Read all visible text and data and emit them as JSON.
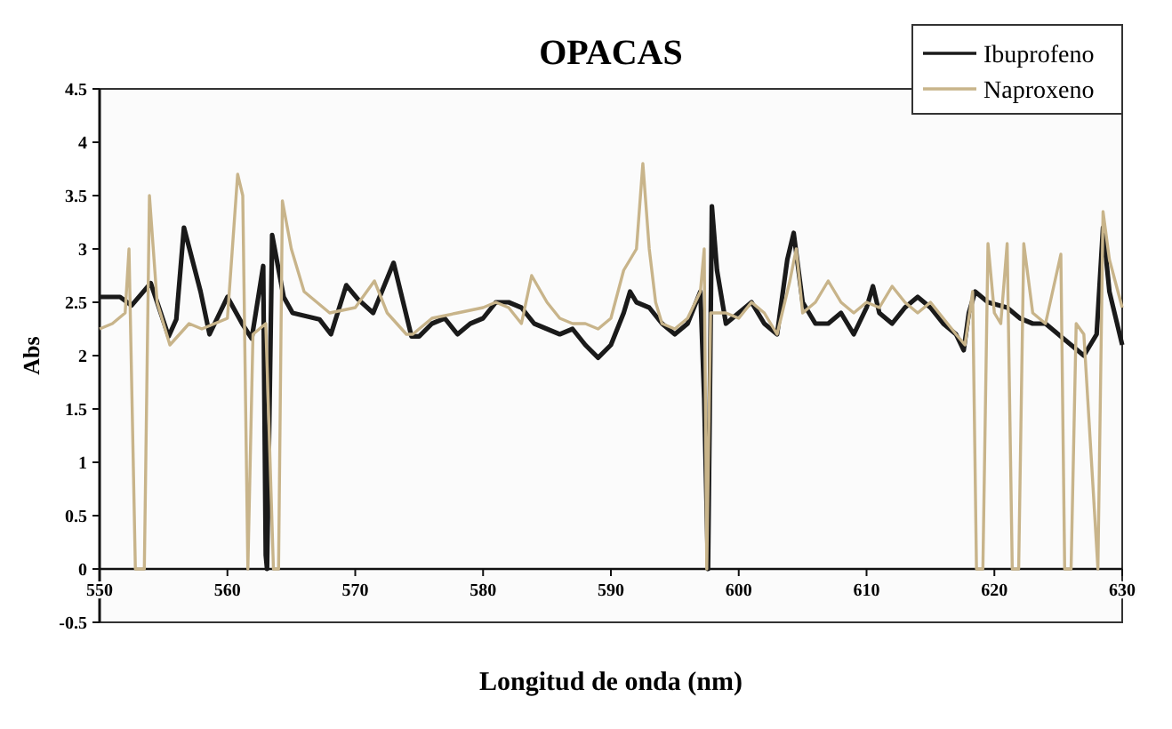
{
  "chart_data": {
    "type": "line",
    "title": "OPACAS",
    "xlabel": "Longitud de onda (nm)",
    "ylabel": "Abs",
    "xlim": [
      550,
      630
    ],
    "xticks": [
      550,
      560,
      570,
      580,
      590,
      600,
      610,
      620,
      630
    ],
    "ylim": [
      -0.5,
      4.5
    ],
    "yticks": [
      -0.5,
      0,
      0.5,
      1,
      1.5,
      2,
      2.5,
      3,
      3.5,
      4,
      4.5
    ],
    "legend": "top right",
    "grid": false,
    "marker": "none",
    "line_style": "solid",
    "series": [
      {
        "name": "Ibuprofeno",
        "color": "#1a1a1a",
        "x": [
          550,
          551.6,
          552.5,
          554,
          555.4,
          556,
          556.6,
          557.9,
          558.6,
          560,
          561.2,
          561.9,
          562.8,
          563,
          563.1,
          563.5,
          564.4,
          565.1,
          567.2,
          568.1,
          569.3,
          570.2,
          571.4,
          573,
          574.4,
          575,
          576,
          577,
          578,
          579,
          580,
          581,
          582,
          583,
          584,
          585,
          586,
          587,
          588,
          589,
          590,
          591,
          591.5,
          592,
          593,
          594,
          595,
          596,
          597,
          597.3,
          597.6,
          597.9,
          598.3,
          599,
          600,
          601,
          602,
          603,
          603.8,
          604.3,
          605,
          606,
          607,
          608,
          609,
          610,
          610.5,
          611,
          612,
          613,
          614,
          615,
          616,
          617,
          617.6,
          618,
          618.5,
          619.5,
          621,
          622,
          623,
          624,
          625,
          626,
          627,
          628,
          628.5,
          629,
          630
        ],
        "values": [
          2.55,
          2.55,
          2.47,
          2.68,
          2.18,
          2.34,
          3.2,
          2.6,
          2.2,
          2.55,
          2.29,
          2.16,
          2.84,
          0.13,
          0,
          3.13,
          2.55,
          2.4,
          2.34,
          2.2,
          2.66,
          2.53,
          2.4,
          2.87,
          2.18,
          2.18,
          2.3,
          2.35,
          2.2,
          2.3,
          2.35,
          2.5,
          2.5,
          2.45,
          2.3,
          2.25,
          2.2,
          2.25,
          2.1,
          1.98,
          2.1,
          2.4,
          2.6,
          2.5,
          2.45,
          2.3,
          2.2,
          2.3,
          2.6,
          1.6,
          0,
          3.4,
          2.8,
          2.3,
          2.4,
          2.5,
          2.3,
          2.2,
          2.9,
          3.15,
          2.5,
          2.3,
          2.3,
          2.4,
          2.2,
          2.45,
          2.65,
          2.4,
          2.3,
          2.45,
          2.55,
          2.45,
          2.3,
          2.2,
          2.05,
          2.4,
          2.6,
          2.5,
          2.45,
          2.35,
          2.3,
          2.3,
          2.2,
          2.1,
          2,
          2.2,
          3.2,
          2.6,
          2.1
        ]
      },
      {
        "name": "Naproxeno",
        "color": "#c8b48a",
        "x": [
          550,
          551,
          552,
          552.3,
          552.8,
          553.5,
          553.9,
          554.5,
          555.5,
          557,
          558,
          560,
          560.8,
          561.2,
          561.6,
          562,
          563,
          563.6,
          564,
          564.3,
          565,
          566,
          568,
          570,
          571.5,
          572.5,
          574,
          574.5,
          576,
          578,
          580,
          581,
          582,
          583,
          583.8,
          585,
          586,
          587,
          588,
          589,
          590,
          591,
          592,
          592.5,
          593,
          593.5,
          594,
          595,
          596,
          597,
          597.3,
          597.5,
          597.8,
          599,
          600,
          601,
          602,
          603,
          604,
          604.5,
          605,
          606,
          607,
          608,
          609,
          610,
          611,
          612,
          613,
          614,
          615,
          616,
          617,
          617.7,
          618.3,
          618.6,
          619.1,
          619.5,
          620,
          620.5,
          621,
          621.4,
          621.9,
          622.3,
          623,
          624,
          625.2,
          625.5,
          626,
          626.4,
          627,
          628.1,
          628.5,
          629,
          630
        ],
        "values": [
          2.25,
          2.3,
          2.4,
          3,
          0,
          0,
          3.5,
          2.5,
          2.1,
          2.3,
          2.25,
          2.35,
          3.7,
          3.5,
          0,
          2.2,
          2.3,
          0,
          0,
          3.45,
          3,
          2.6,
          2.4,
          2.45,
          2.7,
          2.4,
          2.2,
          2.2,
          2.35,
          2.4,
          2.45,
          2.5,
          2.45,
          2.3,
          2.75,
          2.5,
          2.35,
          2.3,
          2.3,
          2.25,
          2.35,
          2.8,
          3,
          3.8,
          3,
          2.5,
          2.3,
          2.25,
          2.35,
          2.6,
          3,
          0,
          2.4,
          2.4,
          2.35,
          2.5,
          2.4,
          2.2,
          2.7,
          3,
          2.4,
          2.5,
          2.7,
          2.5,
          2.4,
          2.5,
          2.45,
          2.65,
          2.5,
          2.4,
          2.5,
          2.35,
          2.2,
          2.1,
          2.6,
          0,
          0,
          3.05,
          2.4,
          2.3,
          3.05,
          0,
          0,
          3.05,
          2.4,
          2.3,
          2.95,
          0,
          0,
          2.3,
          2.2,
          0,
          3.35,
          2.9,
          2.45
        ]
      }
    ]
  }
}
